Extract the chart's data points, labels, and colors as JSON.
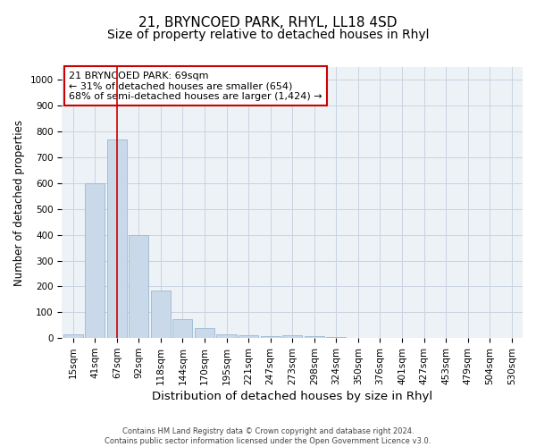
{
  "title": "21, BRYNCOED PARK, RHYL, LL18 4SD",
  "subtitle": "Size of property relative to detached houses in Rhyl",
  "xlabel": "Distribution of detached houses by size in Rhyl",
  "ylabel": "Number of detached properties",
  "bar_labels": [
    "15sqm",
    "41sqm",
    "67sqm",
    "92sqm",
    "118sqm",
    "144sqm",
    "170sqm",
    "195sqm",
    "221sqm",
    "247sqm",
    "273sqm",
    "298sqm",
    "324sqm",
    "350sqm",
    "376sqm",
    "401sqm",
    "427sqm",
    "453sqm",
    "479sqm",
    "504sqm",
    "530sqm"
  ],
  "bar_values": [
    15,
    600,
    770,
    400,
    185,
    75,
    38,
    15,
    10,
    8,
    12,
    6,
    4,
    2,
    1,
    1,
    0,
    0,
    0,
    0,
    0
  ],
  "bar_color": "#c9d9ea",
  "bar_edge_color": "#9ab8d0",
  "vline_x_index": 2,
  "vline_color": "#cc0000",
  "annotation_text": "21 BRYNCOED PARK: 69sqm\n← 31% of detached houses are smaller (654)\n68% of semi-detached houses are larger (1,424) →",
  "annotation_box_facecolor": "#ffffff",
  "annotation_box_edgecolor": "#cc0000",
  "ylim": [
    0,
    1050
  ],
  "yticks": [
    0,
    100,
    200,
    300,
    400,
    500,
    600,
    700,
    800,
    900,
    1000
  ],
  "grid_color": "#c8d4e0",
  "bg_color": "#edf2f7",
  "footnote": "Contains HM Land Registry data © Crown copyright and database right 2024.\nContains public sector information licensed under the Open Government Licence v3.0.",
  "title_fontsize": 11,
  "subtitle_fontsize": 10,
  "xlabel_fontsize": 9.5,
  "ylabel_fontsize": 8.5,
  "tick_fontsize": 7.5,
  "annot_fontsize": 8,
  "footnote_fontsize": 6
}
